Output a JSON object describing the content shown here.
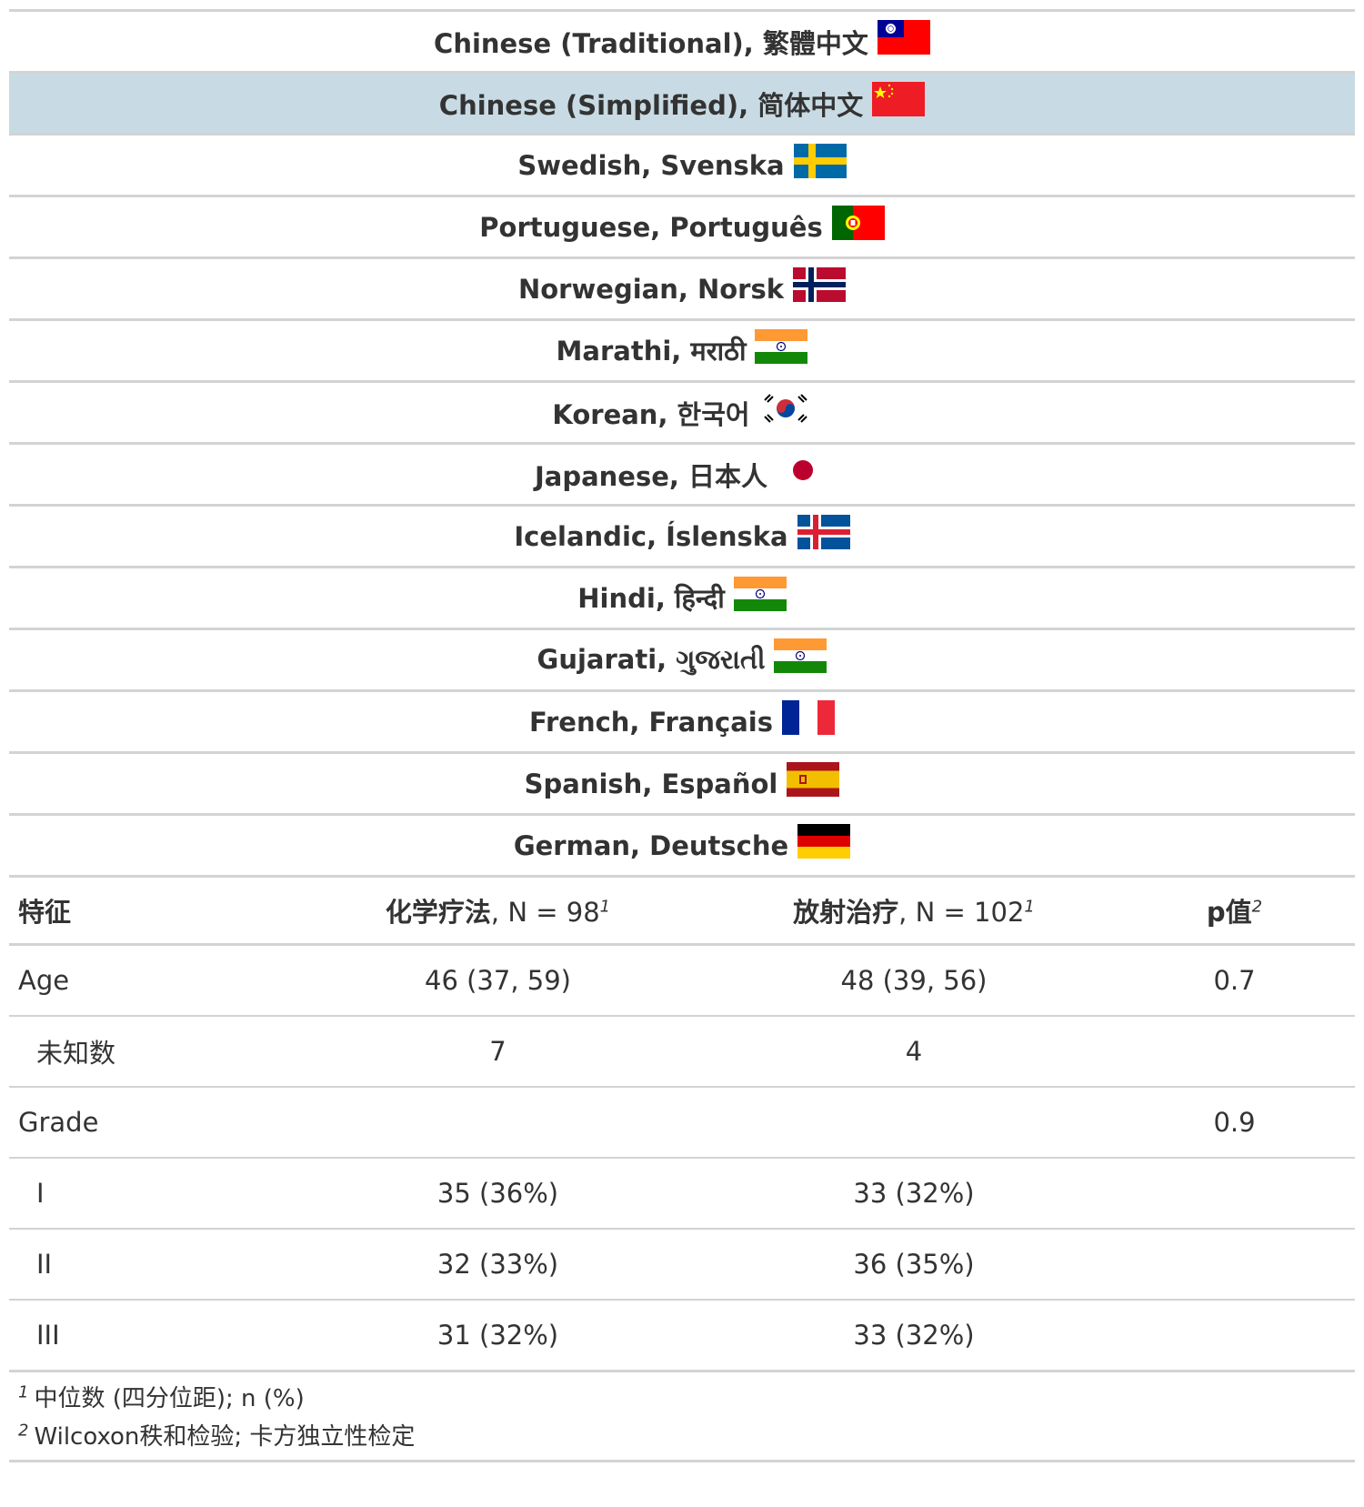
{
  "languages": [
    {
      "label": "Chinese (Traditional), 繁體中文",
      "flag": "taiwan-flag-icon",
      "highlight": false
    },
    {
      "label": "Chinese (Simplified), 简体中文",
      "flag": "china-flag-icon",
      "highlight": true
    },
    {
      "label": "Swedish, Svenska",
      "flag": "sweden-flag-icon",
      "highlight": false
    },
    {
      "label": "Portuguese, Português",
      "flag": "portugal-flag-icon",
      "highlight": false
    },
    {
      "label": "Norwegian, Norsk",
      "flag": "norway-flag-icon",
      "highlight": false
    },
    {
      "label": "Marathi, मराठी",
      "flag": "india-flag-icon",
      "highlight": false
    },
    {
      "label": "Korean, 한국어",
      "flag": "korea-flag-icon",
      "highlight": false
    },
    {
      "label": "Japanese, 日本人",
      "flag": "japan-flag-icon",
      "highlight": false
    },
    {
      "label": "Icelandic, Íslenska",
      "flag": "iceland-flag-icon",
      "highlight": false
    },
    {
      "label": "Hindi, हिन्दी",
      "flag": "india-flag-icon",
      "highlight": false
    },
    {
      "label": "Gujarati, ગુજરાતી",
      "flag": "india-flag-icon",
      "highlight": false
    },
    {
      "label": "French, Français",
      "flag": "france-flag-icon",
      "highlight": false
    },
    {
      "label": "Spanish, Español",
      "flag": "spain-flag-icon",
      "highlight": false
    },
    {
      "label": "German, Deutsche",
      "flag": "germany-flag-icon",
      "highlight": false
    }
  ],
  "table": {
    "headers": {
      "characteristic": "特征",
      "chemo_bold": "化学疗法",
      "chemo_rest": ", N = 98",
      "chemo_sup": "1",
      "radio_bold": "放射治疗",
      "radio_rest": ", N = 102",
      "radio_sup": "1",
      "p_bold": "p值",
      "p_sup": "2"
    },
    "rows": [
      {
        "label": "Age",
        "chemo": "46 (37, 59)",
        "radio": "48 (39, 56)",
        "p": "0.7",
        "indent": false
      },
      {
        "label": "未知数",
        "chemo": "7",
        "radio": "4",
        "p": "",
        "indent": true
      },
      {
        "label": "Grade",
        "chemo": "",
        "radio": "",
        "p": "0.9",
        "indent": false
      },
      {
        "label": "I",
        "chemo": "35 (36%)",
        "radio": "33 (32%)",
        "p": "",
        "indent": true
      },
      {
        "label": "II",
        "chemo": "32 (33%)",
        "radio": "36 (35%)",
        "p": "",
        "indent": true
      },
      {
        "label": "III",
        "chemo": "31 (32%)",
        "radio": "33 (32%)",
        "p": "",
        "indent": true
      }
    ]
  },
  "footnotes": [
    {
      "mark": "1",
      "text": "中位数 (四分位距); n (%)"
    },
    {
      "mark": "2",
      "text": "Wilcoxon秩和检验; 卡方独立性检定"
    }
  ],
  "colors": {
    "highlight_row": "#c8dbe4",
    "rule": "#d3d3d3",
    "text": "#333333"
  }
}
